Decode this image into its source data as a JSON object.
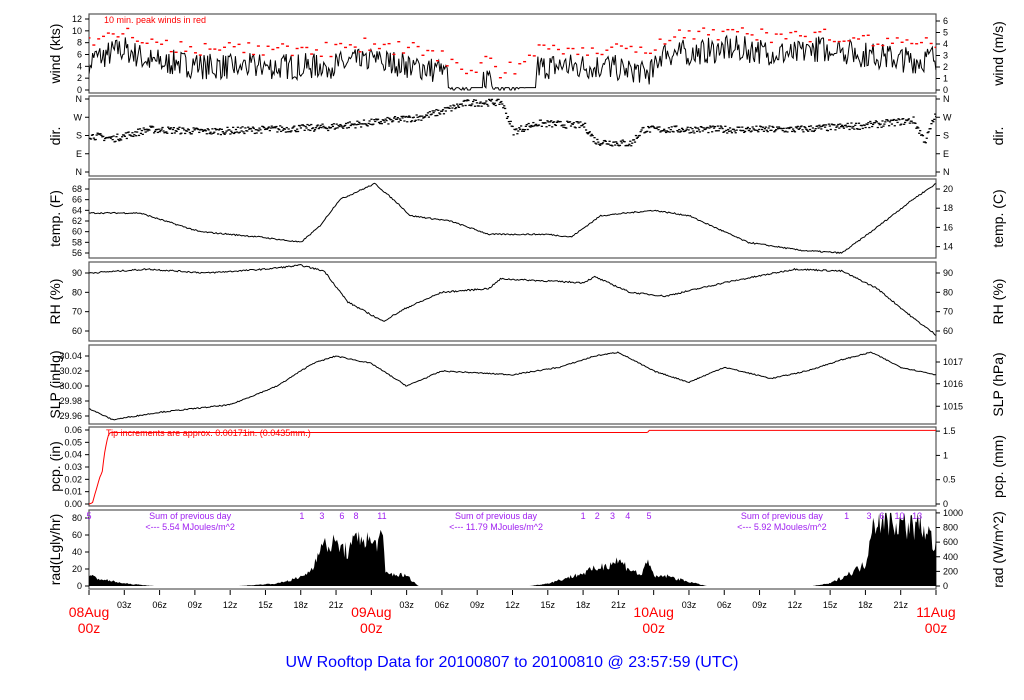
{
  "title": "UW Rooftop Data for 20100807  to  20100810 @ 23:57:59  (UTC)",
  "chart_data": {
    "type": "line",
    "x_unit": "hours since 08Aug 00z",
    "xlim": [
      0,
      72
    ],
    "x_ticks": [
      "03z",
      "06z",
      "09z",
      "12z",
      "15z",
      "18z",
      "21z",
      "",
      "03z",
      "06z",
      "09z",
      "12z",
      "15z",
      "18z",
      "21z",
      "",
      "03z",
      "06z",
      "09z",
      "12z",
      "15z",
      "18z",
      "21z"
    ],
    "day_labels": [
      {
        "hour": 0,
        "day": "08Aug",
        "time": "00z"
      },
      {
        "hour": 24,
        "day": "09Aug",
        "time": "00z"
      },
      {
        "hour": 48,
        "day": "10Aug",
        "time": "00z"
      },
      {
        "hour": 72,
        "day": "11Aug",
        "time": "00z"
      }
    ],
    "colors": {
      "series": "#000000",
      "peak": "#ff0000",
      "pcp": "#ff0000",
      "annot": "#a020f0",
      "title": "#0000ff",
      "day": "#ff0000"
    },
    "panels": [
      {
        "id": "wind",
        "ylabel": "wind (kts)",
        "ylabel_right": "wind (m/s)",
        "ylim": [
          0,
          12
        ],
        "left_ticks": [
          "0",
          "2",
          "4",
          "6",
          "8",
          "10",
          "12"
        ],
        "left_values": [
          0,
          2,
          4,
          6,
          8,
          10,
          12
        ],
        "right_ticks": [
          "0",
          "1",
          "2",
          "3",
          "4",
          "5",
          "6"
        ],
        "right_values": [
          0,
          1.944,
          3.888,
          5.832,
          7.776,
          9.72,
          11.66
        ],
        "annotation": "10 min. peak winds in red",
        "points": [
          [
            0,
            5
          ],
          [
            3,
            7
          ],
          [
            5,
            5
          ],
          [
            10,
            4
          ],
          [
            20,
            4
          ],
          [
            24,
            5
          ],
          [
            28,
            4
          ],
          [
            30,
            3
          ],
          [
            31,
            1
          ],
          [
            33,
            0.5
          ],
          [
            34,
            3
          ],
          [
            35,
            0.5
          ],
          [
            37,
            1
          ],
          [
            38,
            4
          ],
          [
            44,
            4
          ],
          [
            48,
            3
          ],
          [
            48.5,
            6
          ],
          [
            55,
            7
          ],
          [
            60,
            6
          ],
          [
            62,
            7
          ],
          [
            66,
            6
          ],
          [
            70,
            5
          ],
          [
            72,
            5.5
          ]
        ]
      },
      {
        "id": "dir",
        "ylabel": "dir.",
        "ylabel_right": "dir.",
        "ylim": [
          0,
          360
        ],
        "left_ticks": [
          "N",
          "E",
          "S",
          "W",
          "N"
        ],
        "left_values": [
          0,
          90,
          180,
          270,
          360
        ],
        "right_ticks": [
          "N",
          "E",
          "S",
          "W",
          "N"
        ],
        "right_values": [
          0,
          90,
          180,
          270,
          360
        ],
        "points": [
          [
            0,
            180
          ],
          [
            2,
            165
          ],
          [
            5,
            210
          ],
          [
            10,
            200
          ],
          [
            15,
            210
          ],
          [
            20,
            220
          ],
          [
            25,
            250
          ],
          [
            28,
            270
          ],
          [
            30,
            300
          ],
          [
            32,
            340
          ],
          [
            35,
            345
          ],
          [
            36,
            200
          ],
          [
            38,
            240
          ],
          [
            42,
            230
          ],
          [
            43,
            150
          ],
          [
            46,
            140
          ],
          [
            47,
            210
          ],
          [
            60,
            210
          ],
          [
            66,
            230
          ],
          [
            70,
            255
          ],
          [
            71,
            150
          ],
          [
            72,
            300
          ]
        ]
      },
      {
        "id": "temp",
        "ylabel": "temp. (F)",
        "ylabel_right": "temp. (C)",
        "ylim": [
          56,
          68
        ],
        "left_ticks": [
          "56",
          "58",
          "60",
          "62",
          "64",
          "66",
          "68"
        ],
        "left_values": [
          56,
          58,
          60,
          62,
          64,
          66,
          68
        ],
        "right_ticks": [
          "14",
          "16",
          "18",
          "20"
        ],
        "right_values": [
          57.2,
          60.8,
          64.4,
          68
        ],
        "points": [
          [
            0,
            63.5
          ],
          [
            4.3,
            63.5
          ],
          [
            9.4,
            60
          ],
          [
            14.5,
            59
          ],
          [
            18,
            58
          ],
          [
            19.6,
            61
          ],
          [
            21.3,
            66
          ],
          [
            24.3,
            69
          ],
          [
            26.4,
            65
          ],
          [
            27.3,
            63
          ],
          [
            30.7,
            62
          ],
          [
            34,
            59.5
          ],
          [
            39,
            59.5
          ],
          [
            41,
            59
          ],
          [
            43.5,
            63
          ],
          [
            48,
            64
          ],
          [
            51,
            63
          ],
          [
            56,
            58
          ],
          [
            60.5,
            56.5
          ],
          [
            64,
            56
          ],
          [
            66.5,
            60
          ],
          [
            70,
            66
          ],
          [
            72,
            69
          ]
        ]
      },
      {
        "id": "rh",
        "ylabel": "RH (%)",
        "ylabel_right": "RH (%)",
        "ylim": [
          60,
          90
        ],
        "left_ticks": [
          "60",
          "70",
          "80",
          "90"
        ],
        "left_values": [
          60,
          70,
          80,
          90
        ],
        "right_ticks": [
          "60",
          "70",
          "80",
          "90"
        ],
        "right_values": [
          60,
          70,
          80,
          90
        ],
        "points": [
          [
            0,
            90
          ],
          [
            5,
            92
          ],
          [
            10,
            90
          ],
          [
            15,
            92
          ],
          [
            18,
            94
          ],
          [
            20,
            91
          ],
          [
            22,
            75
          ],
          [
            25,
            65
          ],
          [
            27,
            72
          ],
          [
            30,
            80
          ],
          [
            34,
            82
          ],
          [
            35,
            87
          ],
          [
            42,
            85
          ],
          [
            43,
            88
          ],
          [
            46,
            80
          ],
          [
            49,
            78
          ],
          [
            54,
            85
          ],
          [
            60,
            92
          ],
          [
            64,
            91
          ],
          [
            67,
            82
          ],
          [
            70,
            67
          ],
          [
            72,
            58
          ]
        ]
      },
      {
        "id": "slp",
        "ylabel": "SLP (inHg)",
        "ylabel_right": "SLP (hPa)",
        "ylim": [
          29.96,
          30.04
        ],
        "left_ticks": [
          "29.96",
          "29.98",
          "30.00",
          "30.02",
          "30.04"
        ],
        "left_values": [
          29.96,
          29.98,
          30.0,
          30.02,
          30.04
        ],
        "right_ticks": [
          "1015",
          "1016",
          "1017"
        ],
        "right_values": [
          29.973,
          30.003,
          30.032
        ],
        "points": [
          [
            0,
            29.97
          ],
          [
            2,
            29.955
          ],
          [
            6,
            29.965
          ],
          [
            12,
            29.975
          ],
          [
            16,
            30.0
          ],
          [
            19,
            30.03
          ],
          [
            21,
            30.04
          ],
          [
            24,
            30.03
          ],
          [
            27,
            30.0
          ],
          [
            30,
            30.02
          ],
          [
            36,
            30.015
          ],
          [
            40,
            30.025
          ],
          [
            43,
            30.04
          ],
          [
            45,
            30.045
          ],
          [
            48,
            30.02
          ],
          [
            51,
            30.005
          ],
          [
            54,
            30.025
          ],
          [
            58,
            30.01
          ],
          [
            61,
            30.02
          ],
          [
            64,
            30.035
          ],
          [
            66.5,
            30.045
          ],
          [
            69,
            30.025
          ],
          [
            72,
            30.015
          ]
        ]
      },
      {
        "id": "pcp",
        "ylabel": "pcp. (in)",
        "ylabel_right": "pcp. (mm)",
        "ylim": [
          0,
          0.06
        ],
        "left_ticks": [
          "0.00",
          "0.01",
          "0.02",
          "0.03",
          "0.04",
          "0.05",
          "0.06"
        ],
        "left_values": [
          0,
          0.01,
          0.02,
          0.03,
          0.04,
          0.05,
          0.06
        ],
        "right_ticks": [
          "0",
          "0.5",
          "1",
          "1.5"
        ],
        "right_values": [
          0,
          0.0197,
          0.0394,
          0.0591
        ],
        "annotation": "Tip increments are approx. 0.00171in. (0.0435mm.)",
        "points": [
          [
            0,
            0
          ],
          [
            0.3,
            0.001
          ],
          [
            0.8,
            0.018
          ],
          [
            1.0,
            0.024
          ],
          [
            1.1,
            0.024
          ],
          [
            1.3,
            0.04
          ],
          [
            1.6,
            0.055
          ],
          [
            1.8,
            0.058
          ],
          [
            47.5,
            0.058
          ],
          [
            47.6,
            0.0597
          ],
          [
            72,
            0.0597
          ]
        ]
      },
      {
        "id": "rad",
        "ylabel": "rad(Lgly/hr)",
        "ylabel_right": "rad (W/m^2)",
        "ylim": [
          0,
          80
        ],
        "left_ticks": [
          "0",
          "20",
          "40",
          "60",
          "80"
        ],
        "left_values": [
          0,
          20,
          40,
          60,
          80
        ],
        "right_ticks": [
          "0",
          "200",
          "400",
          "600",
          "800",
          "1000"
        ],
        "right_values": [
          0,
          17.2,
          34.4,
          51.6,
          68.8,
          86
        ],
        "points": [
          [
            0,
            12
          ],
          [
            1,
            8
          ],
          [
            3,
            3
          ],
          [
            5.5,
            0
          ],
          [
            12.8,
            0
          ],
          [
            16,
            3
          ],
          [
            18,
            10
          ],
          [
            19,
            20
          ],
          [
            19.5,
            45
          ],
          [
            21,
            50
          ],
          [
            22,
            40
          ],
          [
            23,
            60
          ],
          [
            24,
            50
          ],
          [
            25,
            55
          ],
          [
            25.2,
            15
          ],
          [
            27,
            12
          ],
          [
            28,
            0
          ],
          [
            37.5,
            0
          ],
          [
            39,
            3
          ],
          [
            42,
            15
          ],
          [
            44,
            25
          ],
          [
            45,
            30
          ],
          [
            46,
            20
          ],
          [
            47,
            12
          ],
          [
            47.5,
            35
          ],
          [
            48,
            10
          ],
          [
            49,
            12
          ],
          [
            51,
            5
          ],
          [
            52.5,
            0
          ],
          [
            61.5,
            0
          ],
          [
            63,
            3
          ],
          [
            64,
            10
          ],
          [
            66,
            25
          ],
          [
            66.5,
            70
          ],
          [
            67,
            80
          ],
          [
            70,
            70
          ],
          [
            71,
            70
          ],
          [
            72,
            45
          ]
        ],
        "hour_marks": [
          {
            "hour": 0,
            "label": "5"
          },
          {
            "hour": 18.1,
            "label": "1"
          },
          {
            "hour": 19.8,
            "label": "3"
          },
          {
            "hour": 21.5,
            "label": "6"
          },
          {
            "hour": 22.7,
            "label": "8"
          },
          {
            "hour": 24.9,
            "label": "11"
          },
          {
            "hour": 42,
            "label": "1"
          },
          {
            "hour": 43.2,
            "label": "2"
          },
          {
            "hour": 44.5,
            "label": "3"
          },
          {
            "hour": 45.8,
            "label": "4"
          },
          {
            "hour": 47.6,
            "label": "5"
          },
          {
            "hour": 64.4,
            "label": "1"
          },
          {
            "hour": 66.3,
            "label": "3"
          },
          {
            "hour": 67.4,
            "label": "6"
          },
          {
            "hour": 68.9,
            "label": "10"
          },
          {
            "hour": 70.4,
            "label": "13"
          }
        ],
        "daily_sums": [
          {
            "hour": 5.2,
            "line1": "Sum of previous day",
            "line2": "<--- 5.54 MJoules/m^2"
          },
          {
            "hour": 31.2,
            "line1": "Sum of previous day",
            "line2": "<--- 11.79 MJoules/m^2"
          },
          {
            "hour": 55.5,
            "line1": "Sum of previous day",
            "line2": "<--- 5.92 MJoules/m^2"
          }
        ]
      }
    ]
  }
}
